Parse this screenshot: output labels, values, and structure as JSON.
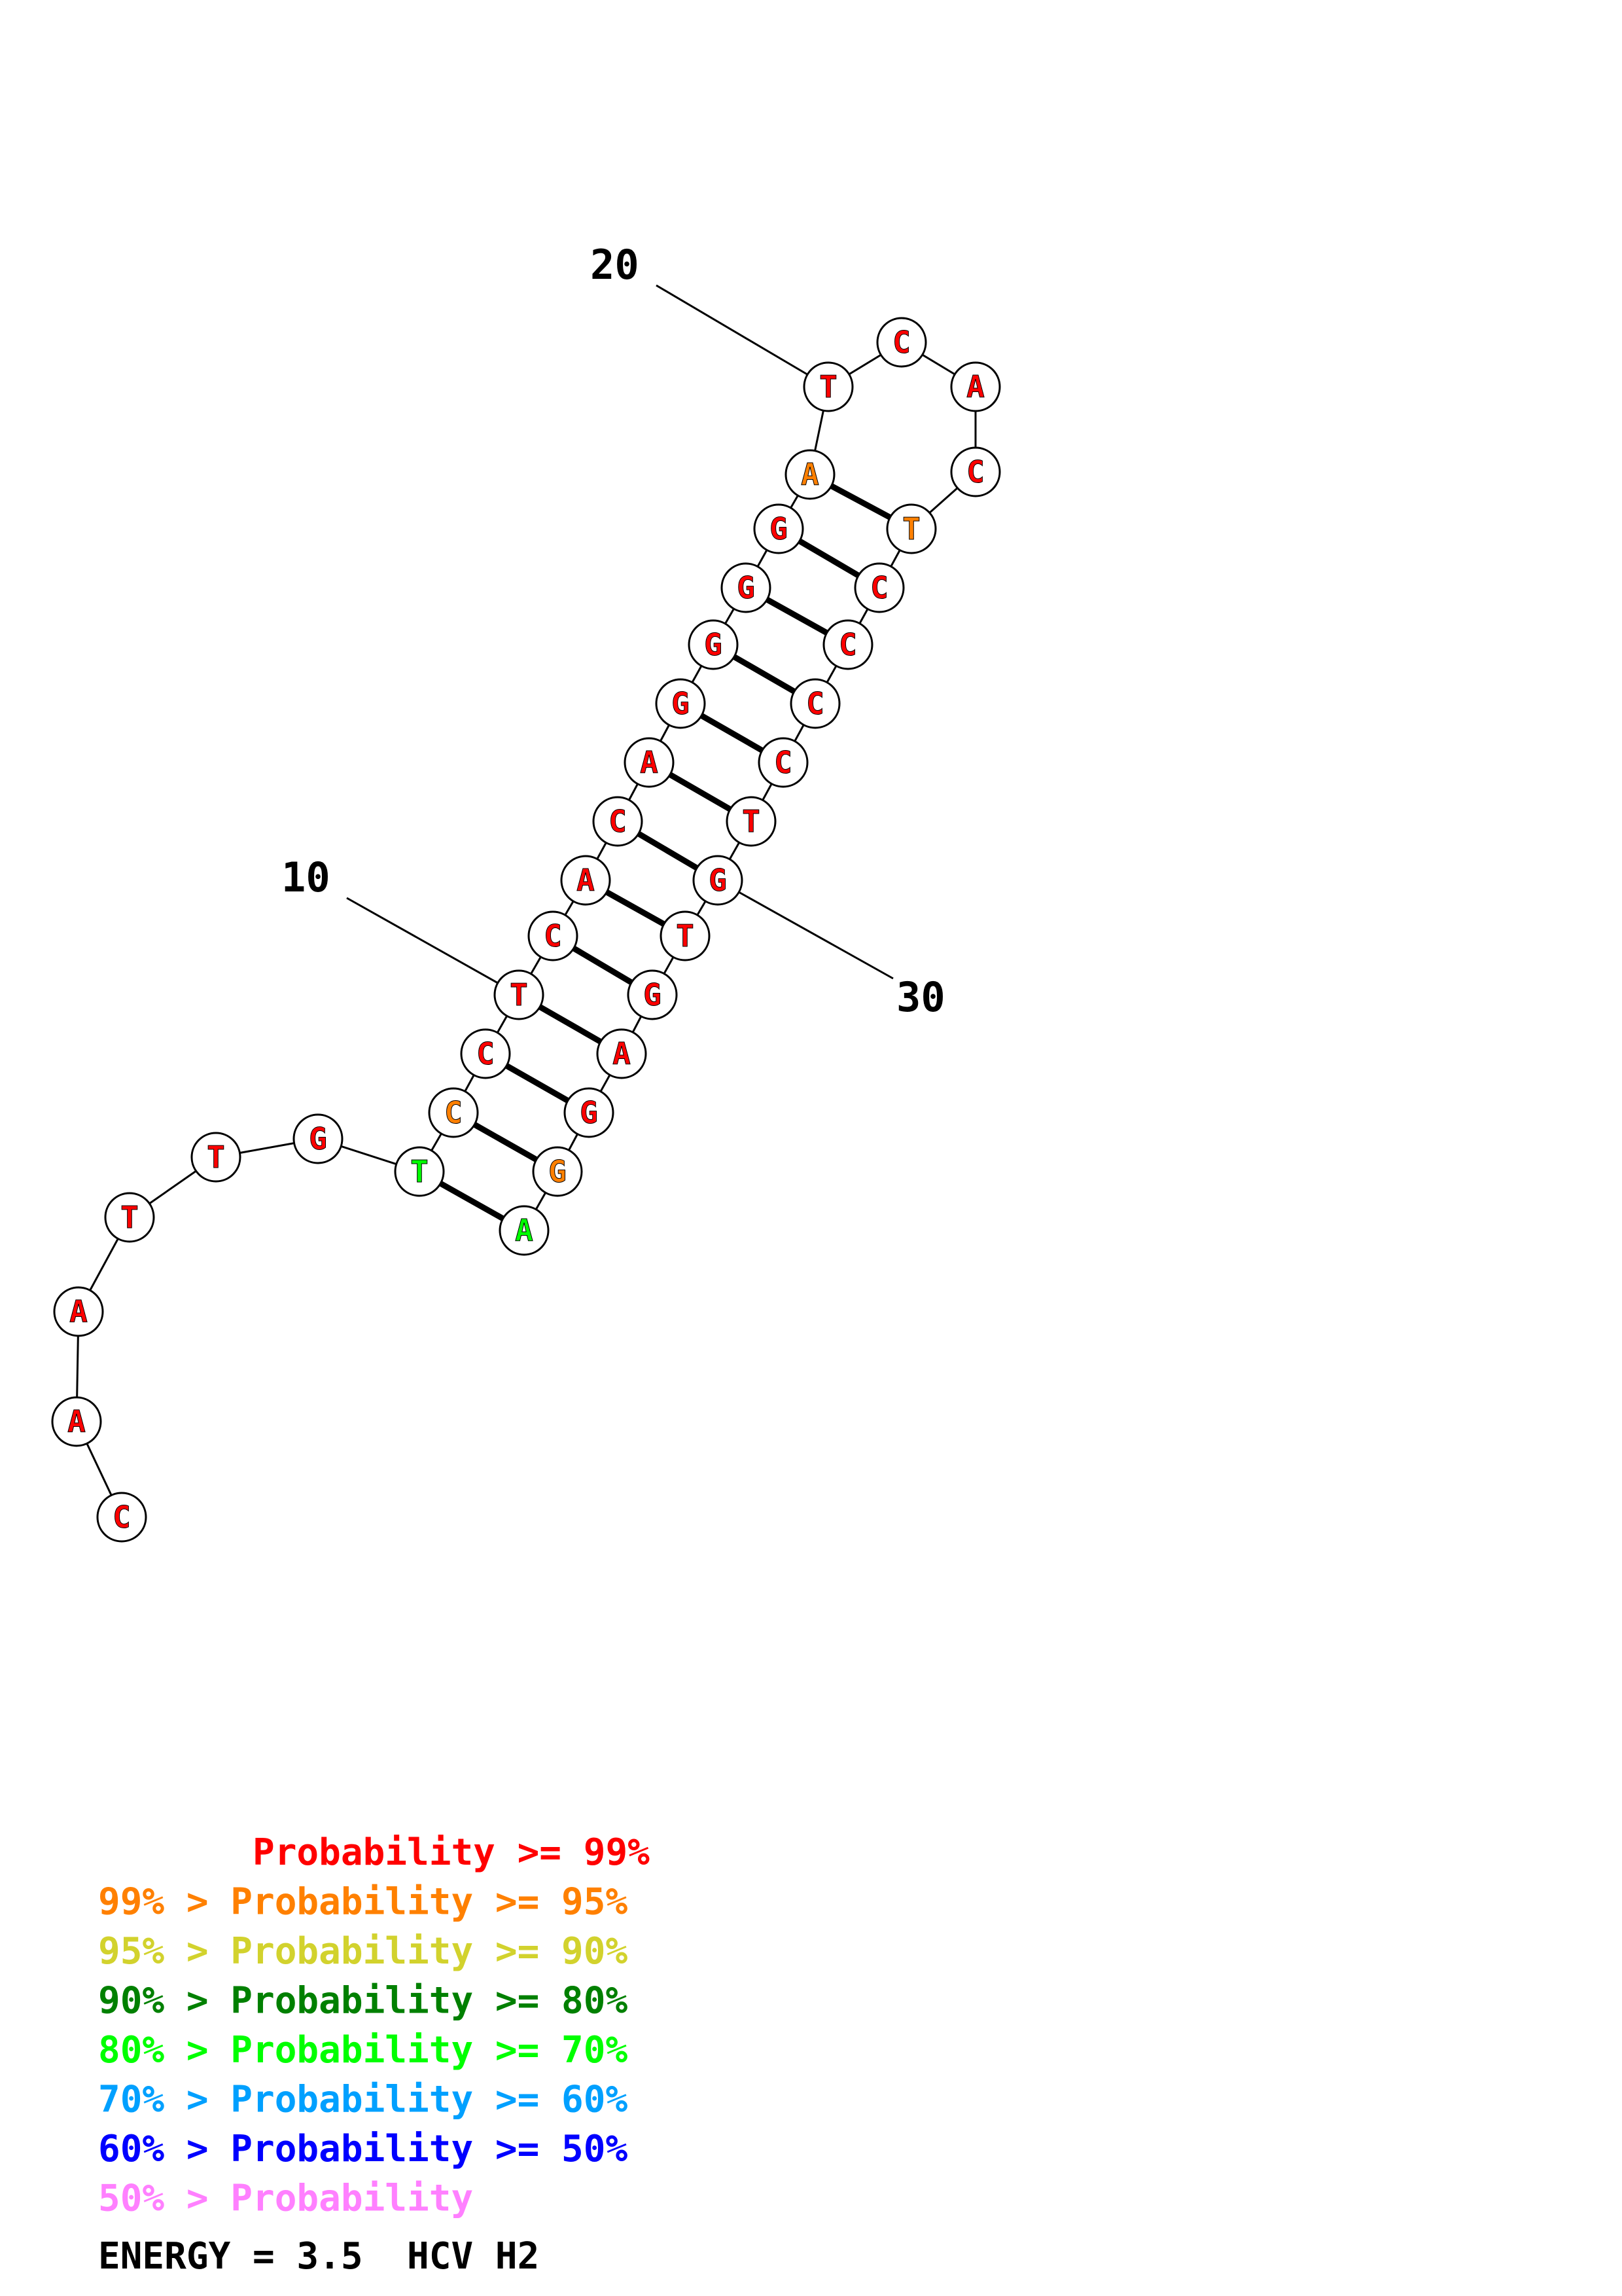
{
  "palette": {
    "p99": "#ff0000",
    "p95": "#ff8000",
    "p90": "#d2d22d",
    "p80": "#008000",
    "p70": "#00ff00",
    "p60": "#00a0ff",
    "p50": "#0000ff",
    "plow": "#ff80ff"
  },
  "sequence": [
    {
      "index": 1,
      "base": "C",
      "prob": "p99"
    },
    {
      "index": 2,
      "base": "A",
      "prob": "p99"
    },
    {
      "index": 3,
      "base": "A",
      "prob": "p99"
    },
    {
      "index": 4,
      "base": "T",
      "prob": "p99"
    },
    {
      "index": 5,
      "base": "T",
      "prob": "p99"
    },
    {
      "index": 6,
      "base": "G",
      "prob": "p99"
    },
    {
      "index": 7,
      "base": "T",
      "prob": "p70"
    },
    {
      "index": 8,
      "base": "C",
      "prob": "p95"
    },
    {
      "index": 9,
      "base": "C",
      "prob": "p99"
    },
    {
      "index": 10,
      "base": "T",
      "prob": "p99"
    },
    {
      "index": 11,
      "base": "C",
      "prob": "p99"
    },
    {
      "index": 12,
      "base": "A",
      "prob": "p99"
    },
    {
      "index": 13,
      "base": "C",
      "prob": "p99"
    },
    {
      "index": 14,
      "base": "A",
      "prob": "p99"
    },
    {
      "index": 15,
      "base": "G",
      "prob": "p99"
    },
    {
      "index": 16,
      "base": "G",
      "prob": "p99"
    },
    {
      "index": 17,
      "base": "G",
      "prob": "p99"
    },
    {
      "index": 18,
      "base": "G",
      "prob": "p99"
    },
    {
      "index": 19,
      "base": "A",
      "prob": "p95"
    },
    {
      "index": 20,
      "base": "T",
      "prob": "p99"
    },
    {
      "index": 21,
      "base": "C",
      "prob": "p99"
    },
    {
      "index": 22,
      "base": "A",
      "prob": "p99"
    },
    {
      "index": 23,
      "base": "C",
      "prob": "p99"
    },
    {
      "index": 24,
      "base": "T",
      "prob": "p95"
    },
    {
      "index": 25,
      "base": "C",
      "prob": "p99"
    },
    {
      "index": 26,
      "base": "C",
      "prob": "p99"
    },
    {
      "index": 27,
      "base": "C",
      "prob": "p99"
    },
    {
      "index": 28,
      "base": "C",
      "prob": "p99"
    },
    {
      "index": 29,
      "base": "T",
      "prob": "p99"
    },
    {
      "index": 30,
      "base": "G",
      "prob": "p99"
    },
    {
      "index": 31,
      "base": "T",
      "prob": "p99"
    },
    {
      "index": 32,
      "base": "G",
      "prob": "p99"
    },
    {
      "index": 33,
      "base": "A",
      "prob": "p99"
    },
    {
      "index": 34,
      "base": "G",
      "prob": "p99"
    },
    {
      "index": 35,
      "base": "G",
      "prob": "p95"
    },
    {
      "index": 36,
      "base": "A",
      "prob": "p70"
    }
  ],
  "pairs": [
    [
      7,
      36
    ],
    [
      8,
      35
    ],
    [
      9,
      34
    ],
    [
      10,
      33
    ],
    [
      11,
      32
    ],
    [
      12,
      31
    ],
    [
      13,
      30
    ],
    [
      14,
      29
    ],
    [
      15,
      28
    ],
    [
      16,
      27
    ],
    [
      17,
      26
    ],
    [
      18,
      25
    ],
    [
      19,
      24
    ]
  ],
  "position_labels": [
    {
      "index": 10,
      "text": "10"
    },
    {
      "index": 20,
      "text": "20"
    },
    {
      "index": 30,
      "text": "30"
    }
  ],
  "legend": [
    {
      "text": "       Probability >= 99%",
      "prob": "p99"
    },
    {
      "text": "99% > Probability >= 95%",
      "prob": "p95"
    },
    {
      "text": "95% > Probability >= 90%",
      "prob": "p90"
    },
    {
      "text": "90% > Probability >= 80%",
      "prob": "p80"
    },
    {
      "text": "80% > Probability >= 70%",
      "prob": "p70"
    },
    {
      "text": "70% > Probability >= 60%",
      "prob": "p60"
    },
    {
      "text": "60% > Probability >= 50%",
      "prob": "p50"
    },
    {
      "text": "50% > Probability",
      "prob": "plow"
    }
  ],
  "energy": {
    "text": "ENERGY = 3.5  HCV H2"
  }
}
